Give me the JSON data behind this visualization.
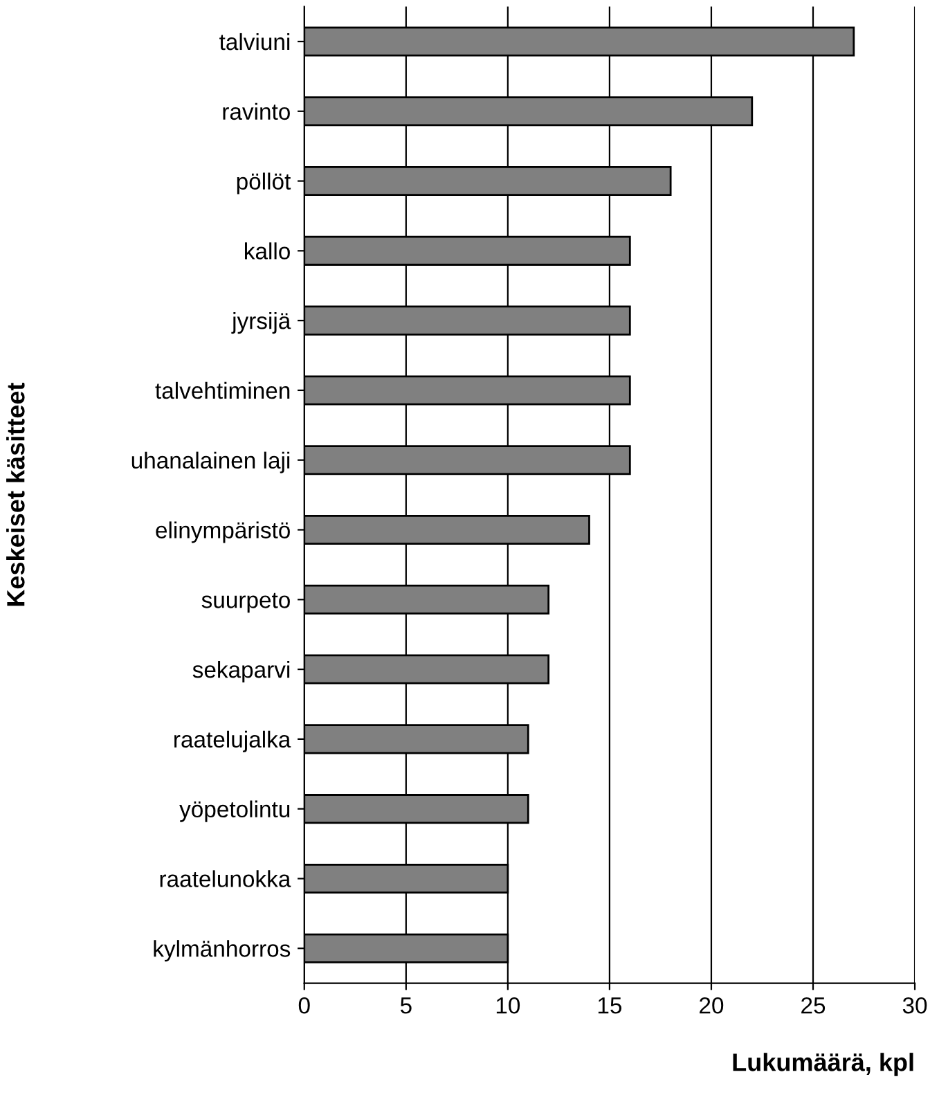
{
  "chart_data": {
    "type": "bar",
    "orientation": "horizontal",
    "xlabel": "Lukumäärä, kpl",
    "ylabel": "Keskeiset käsitteet",
    "categories": [
      "talviuni",
      "ravinto",
      "pöllöt",
      "kallo",
      "jyrsijä",
      "talvehtiminen",
      "uhanalainen laji",
      "elinympäristö",
      "suurpeto",
      "sekaparvi",
      "raatelujalka",
      "yöpetolintu",
      "raatelunokka",
      "kylmänhorros"
    ],
    "values": [
      27,
      22,
      18,
      16,
      16,
      16,
      16,
      14,
      12,
      12,
      11,
      11,
      10,
      10
    ],
    "color": "#808080",
    "xlim": [
      0,
      30
    ],
    "xticks": [
      0,
      5,
      10,
      15,
      20,
      25,
      30
    ],
    "grid": "x"
  }
}
